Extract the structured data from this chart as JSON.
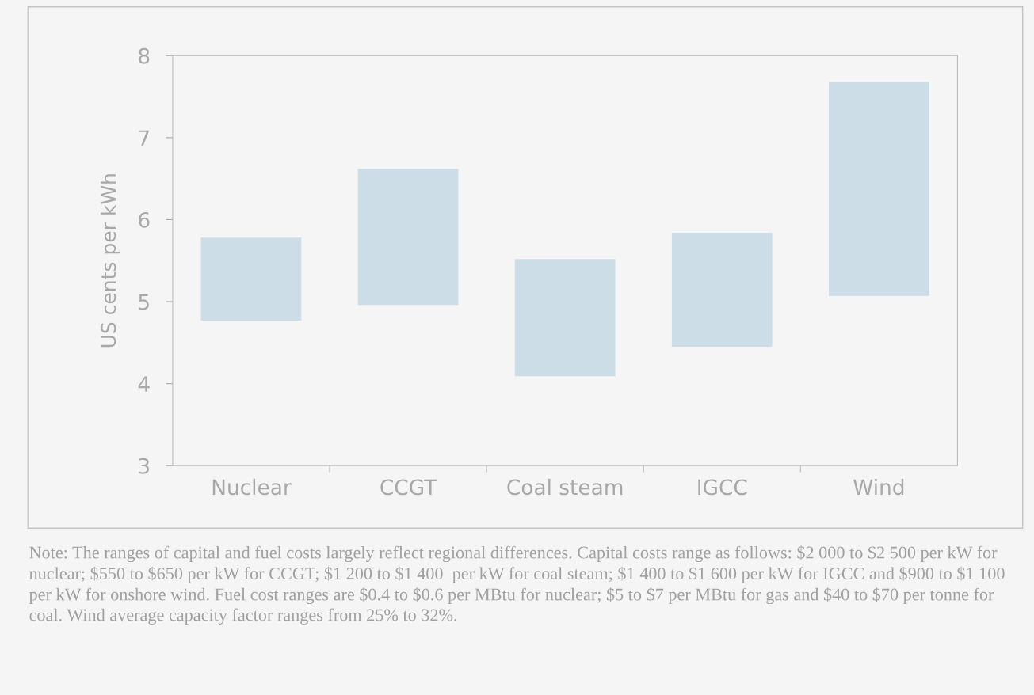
{
  "chart_data": {
    "type": "bar",
    "ylabel": "US cents per kWh",
    "categories": [
      "Nuclear",
      "CCGT",
      "Coal steam",
      "IGCC",
      "Wind"
    ],
    "base": [
      4.77,
      4.96,
      4.09,
      4.45,
      5.07
    ],
    "values": [
      1.01,
      1.66,
      1.43,
      1.39,
      2.61
    ],
    "color": "#ccdde8",
    "ylim": [
      3,
      8
    ],
    "yticks": [
      3,
      4,
      5,
      6,
      7,
      8
    ],
    "grid": false,
    "legend": false,
    "annotations": [
      "Note: The ranges of capital and fuel costs largely reflect regional differences. Capital costs range as follows: $2 000 to $2 500 per kW for nuclear; $550 to $650 per kW for CCGT; $1 200 to $1 400  per kW for coal steam; $1 400 to $1 600 per kW for IGCC and $900 to $1 100 per kW for onshore wind. Fuel cost ranges are $0.4 to $0.6 per MBtu for nuclear; $5 to $7 per MBtu for gas and $40 to $70 per tonne for coal. Wind average capacity factor ranges from 25% to 32%."
    ]
  }
}
